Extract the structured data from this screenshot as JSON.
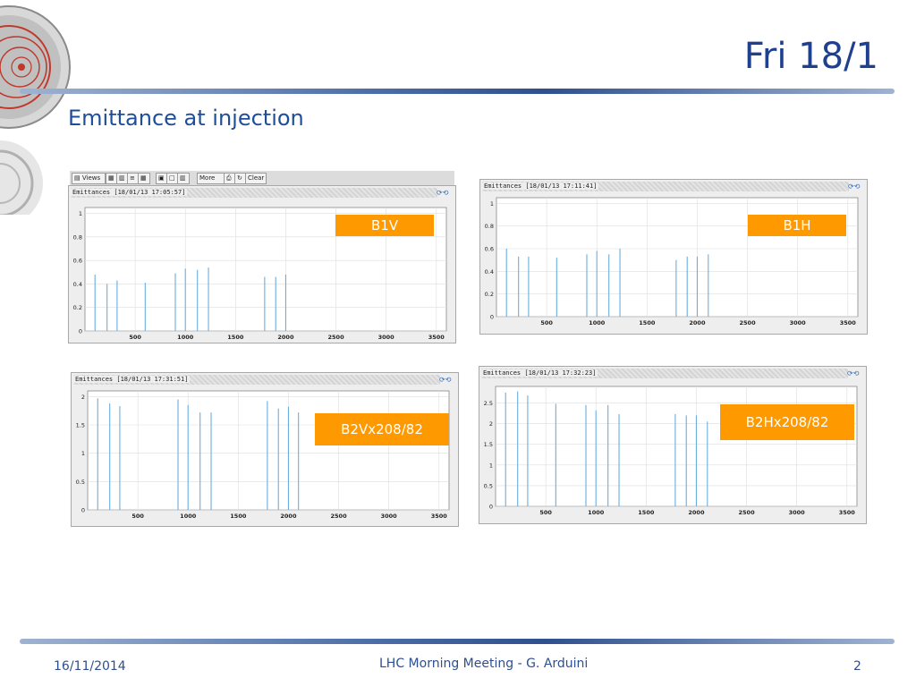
{
  "slide": {
    "title": "Fri 18/1",
    "subtitle": "Emittance at injection"
  },
  "toolbar": {
    "views": "Views",
    "more": "More",
    "clear": "Clear"
  },
  "footer": {
    "date": "16/11/2014",
    "center": "LHC Morning Meeting - G. Arduini",
    "page": "2"
  },
  "colors": {
    "accent": "#ff9900",
    "bar": "#6aaee0",
    "title": "#1f3f8f"
  },
  "chart_data": [
    {
      "type": "bar",
      "panel_title": "Emittances  [18/01/13 17:05:57]",
      "label": "B1V",
      "xlim": [
        0,
        3600
      ],
      "ylim": [
        0,
        1.05
      ],
      "xticks": [
        500,
        1000,
        1500,
        2000,
        2500,
        3000,
        3500
      ],
      "yticks": [
        0,
        0.2,
        0.4,
        0.6,
        0.8,
        1
      ],
      "ytick_labels": [
        "0",
        "0.2",
        "0.4",
        "0.6",
        "0.8",
        "1"
      ],
      "x": [
        100,
        220,
        320,
        600,
        900,
        1000,
        1120,
        1230,
        1790,
        1900,
        2000
      ],
      "values": [
        0.48,
        0.4,
        0.43,
        0.41,
        0.49,
        0.53,
        0.52,
        0.54,
        0.46,
        0.46,
        0.48
      ]
    },
    {
      "type": "bar",
      "panel_title": "Emittances  [18/01/13 17:11:41]",
      "label": "B1H",
      "xlim": [
        0,
        3600
      ],
      "ylim": [
        0,
        1.05
      ],
      "xticks": [
        500,
        1000,
        1500,
        2000,
        2500,
        3000,
        3500
      ],
      "yticks": [
        0,
        0.2,
        0.4,
        0.6,
        0.8,
        1
      ],
      "ytick_labels": [
        "0",
        "0.2",
        "0.4",
        "0.6",
        "0.8",
        "1"
      ],
      "x": [
        100,
        220,
        320,
        600,
        900,
        1000,
        1120,
        1230,
        1790,
        1900,
        2000,
        2110
      ],
      "values": [
        0.6,
        0.53,
        0.53,
        0.52,
        0.55,
        0.58,
        0.55,
        0.6,
        0.5,
        0.53,
        0.53,
        0.55
      ]
    },
    {
      "type": "bar",
      "panel_title": "Emittances  [18/01/13 17:31:51]",
      "label": "B2Vx208/82",
      "xlim": [
        0,
        3600
      ],
      "ylim": [
        0,
        2.1
      ],
      "xticks": [
        500,
        1000,
        1500,
        2000,
        2500,
        3000,
        3500
      ],
      "yticks": [
        0,
        0.5,
        1,
        1.5,
        2
      ],
      "ytick_labels": [
        "0",
        "0.5",
        "1",
        "1.5",
        "2"
      ],
      "x": [
        100,
        220,
        320,
        900,
        1000,
        1120,
        1230,
        1790,
        1900,
        2000,
        2100
      ],
      "values": [
        1.97,
        1.88,
        1.83,
        1.95,
        1.85,
        1.72,
        1.72,
        1.92,
        1.79,
        1.82,
        1.72
      ]
    },
    {
      "type": "bar",
      "panel_title": "Emittances  [18/01/13 17:32:23]",
      "label": "B2Hx208/82",
      "xlim": [
        0,
        3600
      ],
      "ylim": [
        0,
        2.9
      ],
      "xticks": [
        500,
        1000,
        1500,
        2000,
        2500,
        3000,
        3500
      ],
      "yticks": [
        0,
        0.5,
        1,
        1.5,
        2,
        2.5
      ],
      "ytick_labels": [
        "0",
        "0.5",
        "1",
        "1.5",
        "2",
        "2.5"
      ],
      "x": [
        100,
        220,
        320,
        600,
        900,
        1000,
        1120,
        1230,
        1790,
        1900,
        2000,
        2110
      ],
      "values": [
        2.75,
        2.78,
        2.68,
        2.48,
        2.45,
        2.32,
        2.45,
        2.23,
        2.23,
        2.2,
        2.2,
        2.05
      ]
    }
  ]
}
